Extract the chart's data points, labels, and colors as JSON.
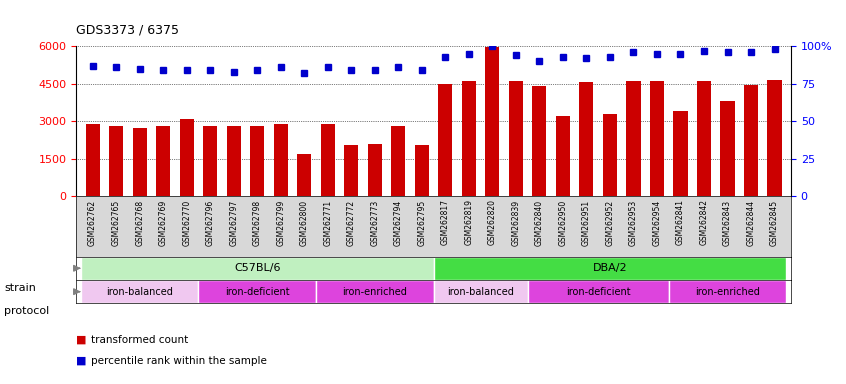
{
  "title": "GDS3373 / 6375",
  "samples": [
    "GSM262762",
    "GSM262765",
    "GSM262768",
    "GSM262769",
    "GSM262770",
    "GSM262796",
    "GSM262797",
    "GSM262798",
    "GSM262799",
    "GSM262800",
    "GSM262771",
    "GSM262772",
    "GSM262773",
    "GSM262794",
    "GSM262795",
    "GSM262817",
    "GSM262819",
    "GSM262820",
    "GSM262839",
    "GSM262840",
    "GSM262950",
    "GSM262951",
    "GSM262952",
    "GSM262953",
    "GSM262954",
    "GSM262841",
    "GSM262842",
    "GSM262843",
    "GSM262844",
    "GSM262845"
  ],
  "transformed_count": [
    2900,
    2800,
    2750,
    2800,
    3100,
    2800,
    2800,
    2800,
    2900,
    1700,
    2900,
    2050,
    2100,
    2800,
    2050,
    4500,
    4600,
    5950,
    4600,
    4400,
    3200,
    4550,
    3300,
    4600,
    4600,
    3400,
    4600,
    3800,
    4450,
    4650
  ],
  "percentile_rank": [
    87,
    86,
    85,
    84,
    84,
    84,
    83,
    84,
    86,
    82,
    86,
    84,
    84,
    86,
    84,
    93,
    95,
    100,
    94,
    90,
    93,
    92,
    93,
    96,
    95,
    95,
    97,
    96,
    96,
    98
  ],
  "bar_color": "#cc0000",
  "dot_color": "#0000cc",
  "ylim_left": [
    0,
    6000
  ],
  "ylim_right": [
    0,
    100
  ],
  "yticks_left": [
    0,
    1500,
    3000,
    4500,
    6000
  ],
  "yticklabels_left": [
    "0",
    "1500",
    "3000",
    "4500",
    "6000"
  ],
  "yticks_right": [
    0,
    25,
    50,
    75,
    100
  ],
  "yticklabels_right": [
    "0",
    "25",
    "50",
    "75",
    "100%"
  ],
  "plot_bg_color": "#ffffff",
  "xtick_bg_color": "#d8d8d8",
  "strain_groups": [
    {
      "label": "C57BL/6",
      "start": 0,
      "end": 15,
      "color": "#c0f0c0"
    },
    {
      "label": "DBA/2",
      "start": 15,
      "end": 30,
      "color": "#44dd44"
    }
  ],
  "protocol_groups": [
    {
      "label": "iron-balanced",
      "start": 0,
      "end": 5,
      "color": "#f0c8f0"
    },
    {
      "label": "iron-deficient",
      "start": 5,
      "end": 10,
      "color": "#dd44dd"
    },
    {
      "label": "iron-enriched",
      "start": 10,
      "end": 15,
      "color": "#dd44dd"
    },
    {
      "label": "iron-balanced",
      "start": 15,
      "end": 19,
      "color": "#f0c8f0"
    },
    {
      "label": "iron-deficient",
      "start": 19,
      "end": 25,
      "color": "#dd44dd"
    },
    {
      "label": "iron-enriched",
      "start": 25,
      "end": 30,
      "color": "#dd44dd"
    }
  ]
}
